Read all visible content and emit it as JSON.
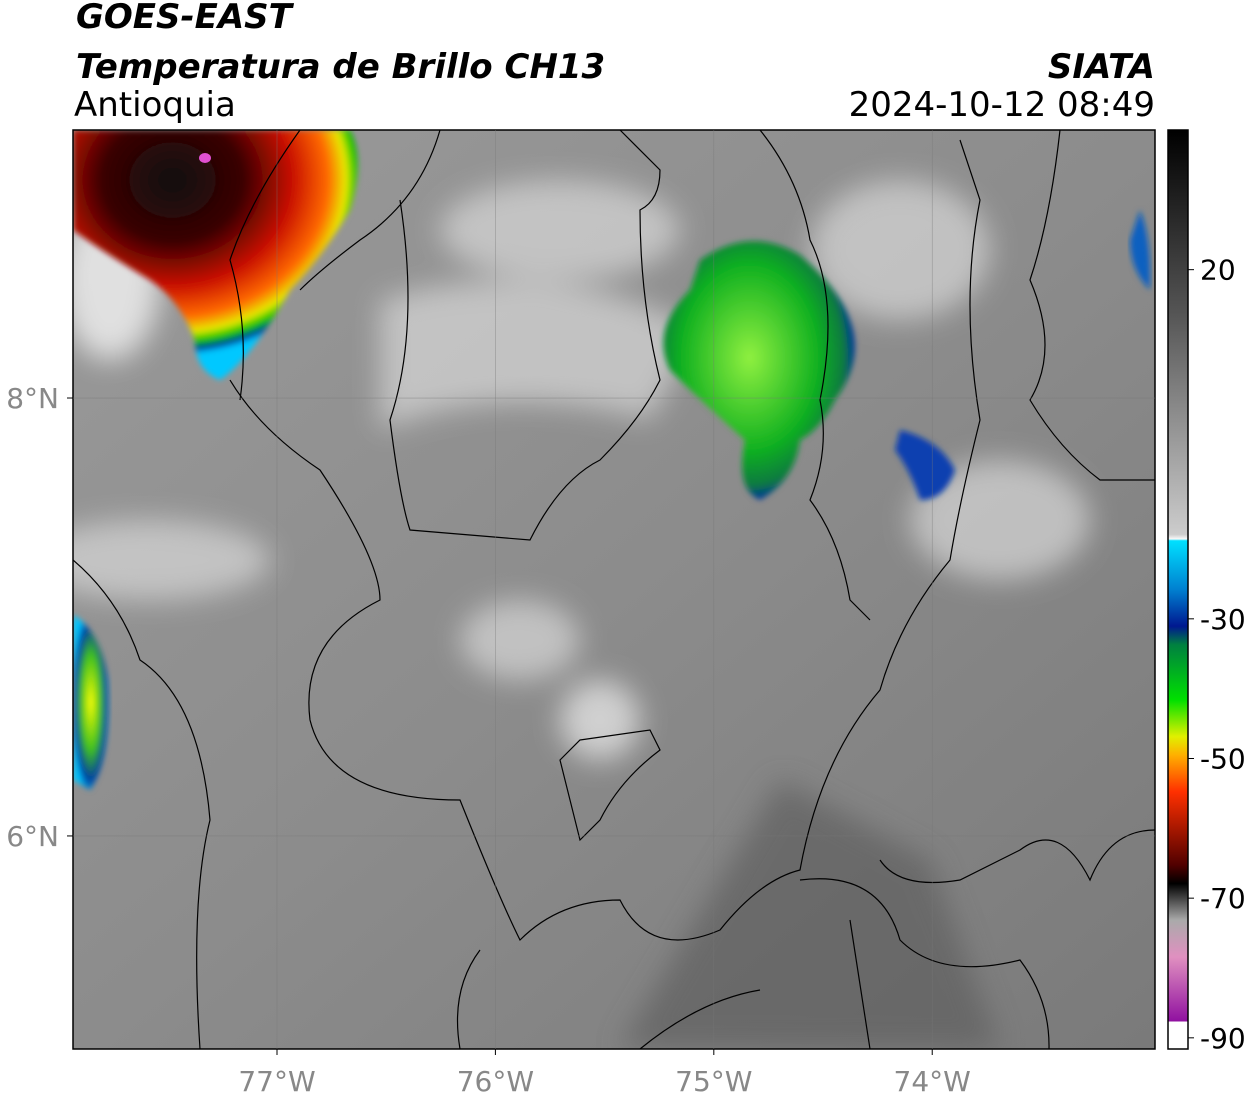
{
  "header": {
    "title": "GOES-EAST",
    "subtitle": "Temperatura de Brillo CH13",
    "region": "Antioquia",
    "source": "SIATA",
    "datetime": "2024-10-12 08:49"
  },
  "map": {
    "lonlim": [
      -77.934,
      -72.98
    ],
    "latlim": [
      5.027,
      9.224
    ],
    "lon_ticks": [
      {
        "value": -77,
        "label": "77°W"
      },
      {
        "value": -76,
        "label": "76°W"
      },
      {
        "value": -75,
        "label": "75°W"
      },
      {
        "value": -74,
        "label": "74°W"
      }
    ],
    "lat_ticks": [
      {
        "value": 8,
        "label": "8°N"
      },
      {
        "value": 6,
        "label": "6°N"
      }
    ],
    "grid": true
  },
  "colorbar": {
    "range": [
      -91.6,
      40
    ],
    "ticks": [
      20,
      -30,
      -50,
      -70,
      -90
    ]
  }
}
